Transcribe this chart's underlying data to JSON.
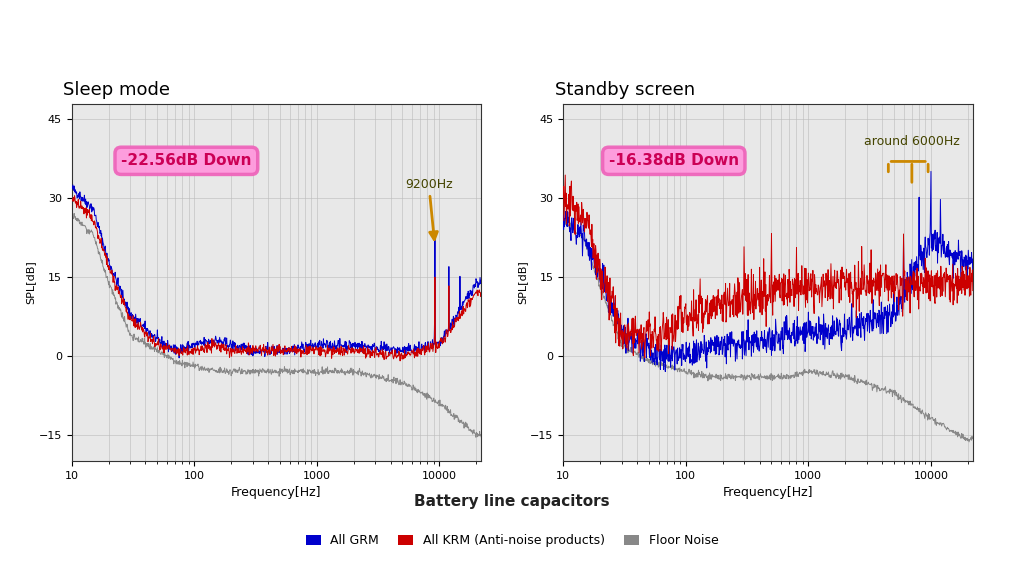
{
  "title1": "Sleep mode",
  "title2": "Standby screen",
  "xlabel": "Frequency[Hz]",
  "ylabel": "SPL[dB]",
  "ylim": [
    -20,
    48
  ],
  "yticks": [
    -15,
    0,
    15,
    30,
    45
  ],
  "xlim": [
    10,
    22000
  ],
  "annotation1_text": "-22.56dB Down",
  "annotation1_arrow_label": "9200Hz",
  "annotation2_text": "-16.38dB Down",
  "annotation2_arrow_label": "around 6000Hz",
  "legend_title": "Battery line capacitors",
  "legend_items": [
    "All GRM",
    "All KRM (Anti-noise products)",
    "Floor Noise"
  ],
  "color_grm": "#0000cc",
  "color_krm": "#cc0000",
  "color_floor": "#888888",
  "bg_color": "#ffffff",
  "plot_bg": "#e8e8e8",
  "grid_color": "#bbbbbb",
  "annotation_bg": "#ff99dd",
  "annotation_edge": "#ee66bb",
  "annotation_text_color": "#cc0055",
  "arrow_color": "#cc8800"
}
